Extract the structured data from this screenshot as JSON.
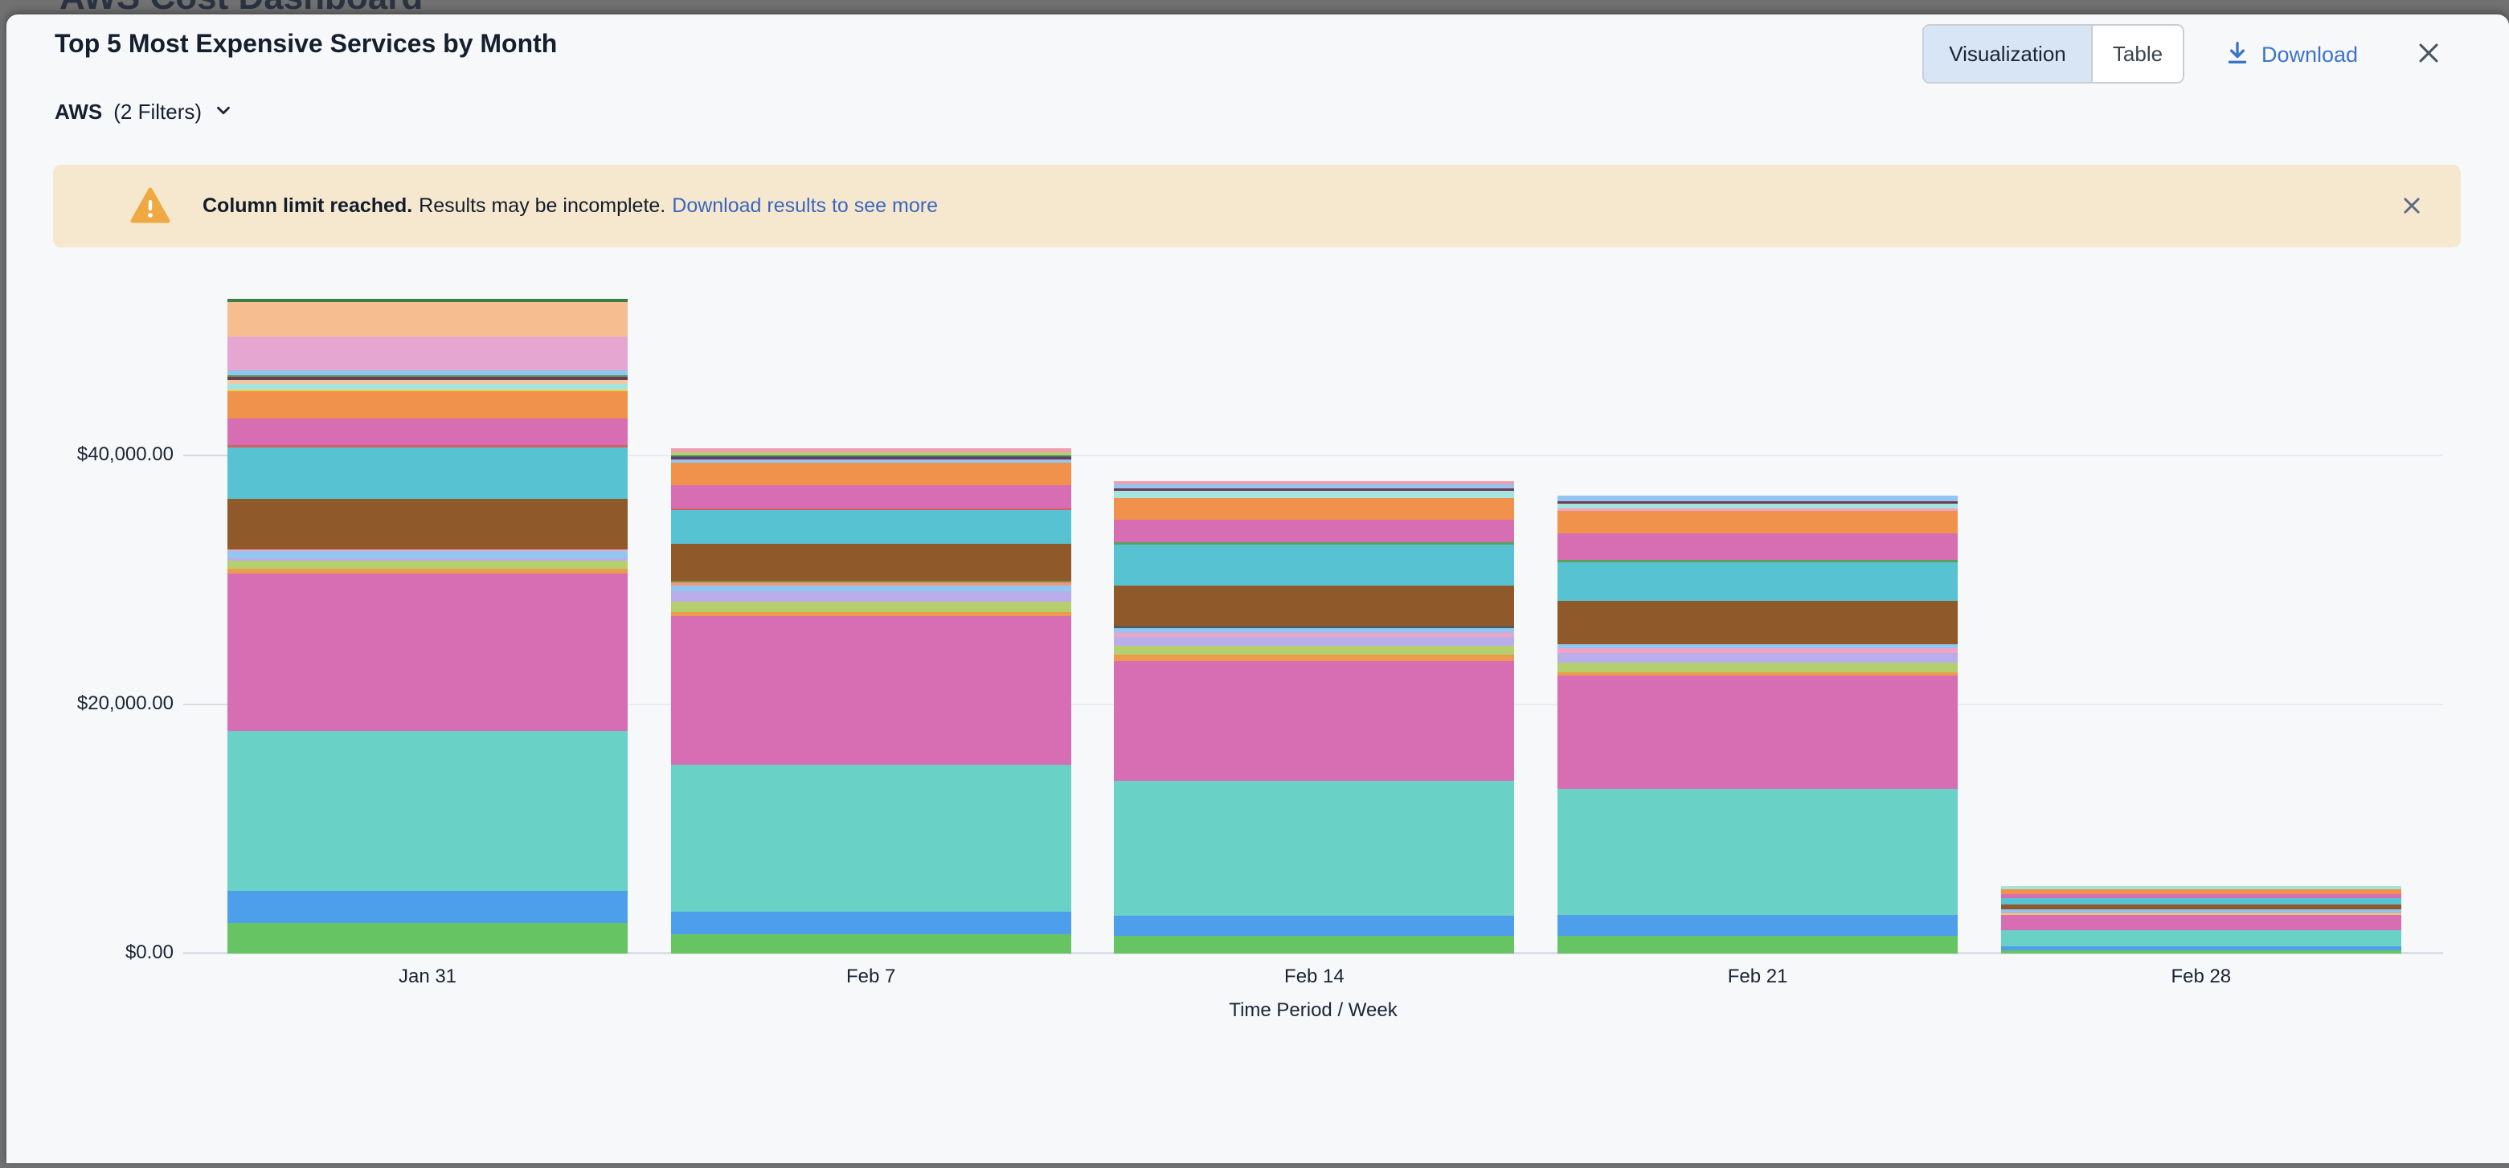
{
  "backdrop": {
    "title": "AWS Cost Dashboard"
  },
  "panel": {
    "title": "Top 5 Most Expensive Services by Month",
    "filter": {
      "name": "AWS",
      "count_label": "(2 Filters)"
    },
    "controls": {
      "view_options": [
        {
          "label": "Visualization",
          "selected": true
        },
        {
          "label": "Table",
          "selected": false
        }
      ],
      "download_label": "Download"
    }
  },
  "banner": {
    "bold_text": "Column limit reached.",
    "text": "Results may be incomplete.",
    "link_text": "Download results to see more",
    "background_color": "#f6e8cf",
    "warning_color": "#f0a942"
  },
  "chart_data": {
    "type": "bar",
    "stacked": true,
    "title": "Top 5 Most Expensive Services by Month",
    "xlabel": "Time Period / Week",
    "ylabel": "",
    "ylim": [
      0,
      55000
    ],
    "grid": true,
    "legend": "none",
    "y_ticks": [
      {
        "value": 0,
        "label": "$0.00"
      },
      {
        "value": 20000,
        "label": "$20,000.00"
      },
      {
        "value": 40000,
        "label": "$40,000.00"
      }
    ],
    "categories": [
      "Jan 31",
      "Feb 7",
      "Feb 14",
      "Feb 21",
      "Feb 28"
    ],
    "totals_usd_approx": [
      52590,
      40580,
      37935,
      36785,
      5450
    ],
    "note": "segments listed bottom-to-top, values approximate USD",
    "bars": [
      {
        "label": "Jan 31",
        "segments": [
          {
            "color": "#67c462",
            "value": 2450
          },
          {
            "color": "#4d9fec",
            "value": 2580
          },
          {
            "color": "#69d1c5",
            "value": 12840
          },
          {
            "color": "#d76db3",
            "value": 12645
          },
          {
            "color": "#eb9b4d",
            "value": 390
          },
          {
            "color": "#b6cf6e",
            "value": 645
          },
          {
            "color": "#b9aeea",
            "value": 195
          },
          {
            "color": "#92c5f1",
            "value": 580
          },
          {
            "color": "#f2a3c3",
            "value": 130
          },
          {
            "color": "#90592a",
            "value": 4065
          },
          {
            "color": "#57c2d2",
            "value": 4130
          },
          {
            "color": "#d95e5e",
            "value": 175
          },
          {
            "color": "#d76db3",
            "value": 2130
          },
          {
            "color": "#f0924b",
            "value": 2215
          },
          {
            "color": "#ecd05c",
            "value": 150
          },
          {
            "color": "#a5e4dd",
            "value": 430
          },
          {
            "color": "#f0c7a5",
            "value": 300
          },
          {
            "color": "#713a56",
            "value": 260
          },
          {
            "color": "#57a35d",
            "value": 150
          },
          {
            "color": "#92c5f1",
            "value": 405
          },
          {
            "color": "#e5a6d2",
            "value": 2710
          },
          {
            "color": "#f5bd90",
            "value": 2755
          },
          {
            "color": "#3c7d45",
            "value": 260
          }
        ]
      },
      {
        "label": "Feb 7",
        "segments": [
          {
            "color": "#67c462",
            "value": 1550
          },
          {
            "color": "#4d9fec",
            "value": 1805
          },
          {
            "color": "#69d1c5",
            "value": 11805
          },
          {
            "color": "#d76db3",
            "value": 11935
          },
          {
            "color": "#eb9b4d",
            "value": 320
          },
          {
            "color": "#b6cf6e",
            "value": 840
          },
          {
            "color": "#b9aeea",
            "value": 840
          },
          {
            "color": "#92c5f1",
            "value": 450
          },
          {
            "color": "#ef9a80",
            "value": 260
          },
          {
            "color": "#7d8b3f",
            "value": 130
          },
          {
            "color": "#90592a",
            "value": 2965
          },
          {
            "color": "#57c2d2",
            "value": 2710
          },
          {
            "color": "#d95e5e",
            "value": 130
          },
          {
            "color": "#d76db3",
            "value": 1870
          },
          {
            "color": "#f0924b",
            "value": 1805
          },
          {
            "color": "#92c5f1",
            "value": 260
          },
          {
            "color": "#713a56",
            "value": 195
          },
          {
            "color": "#2f7d72",
            "value": 130
          },
          {
            "color": "#b6cf6e",
            "value": 260
          },
          {
            "color": "#ee9fae",
            "value": 320
          }
        ]
      },
      {
        "label": "Feb 14",
        "segments": [
          {
            "color": "#67c462",
            "value": 1420
          },
          {
            "color": "#4d9fec",
            "value": 1615
          },
          {
            "color": "#69d1c5",
            "value": 10840
          },
          {
            "color": "#d76db3",
            "value": 9615
          },
          {
            "color": "#eb9b4d",
            "value": 515
          },
          {
            "color": "#b6cf6e",
            "value": 710
          },
          {
            "color": "#b9aeea",
            "value": 710
          },
          {
            "color": "#f2a3c3",
            "value": 320
          },
          {
            "color": "#92c5f1",
            "value": 385
          },
          {
            "color": "#505c55",
            "value": 195
          },
          {
            "color": "#90592a",
            "value": 3225
          },
          {
            "color": "#57c2d2",
            "value": 3290
          },
          {
            "color": "#57a35d",
            "value": 195
          },
          {
            "color": "#d76db3",
            "value": 1805
          },
          {
            "color": "#f0924b",
            "value": 1740
          },
          {
            "color": "#a5e4dd",
            "value": 580
          },
          {
            "color": "#713a56",
            "value": 195
          },
          {
            "color": "#92c5f1",
            "value": 320
          },
          {
            "color": "#ee9fae",
            "value": 260
          }
        ]
      },
      {
        "label": "Feb 21",
        "segments": [
          {
            "color": "#67c462",
            "value": 1420
          },
          {
            "color": "#4d9fec",
            "value": 1680
          },
          {
            "color": "#69d1c5",
            "value": 10130
          },
          {
            "color": "#d76db3",
            "value": 9100
          },
          {
            "color": "#eb9b4d",
            "value": 260
          },
          {
            "color": "#b6cf6e",
            "value": 775
          },
          {
            "color": "#b9aeea",
            "value": 775
          },
          {
            "color": "#f2a3c3",
            "value": 385
          },
          {
            "color": "#92c5f1",
            "value": 320
          },
          {
            "color": "#90592a",
            "value": 3485
          },
          {
            "color": "#57c2d2",
            "value": 3100
          },
          {
            "color": "#57a35d",
            "value": 195
          },
          {
            "color": "#d76db3",
            "value": 2130
          },
          {
            "color": "#f0924b",
            "value": 1805
          },
          {
            "color": "#f2a3c3",
            "value": 195
          },
          {
            "color": "#a5e4dd",
            "value": 385
          },
          {
            "color": "#713a56",
            "value": 195
          },
          {
            "color": "#92c5f1",
            "value": 450
          }
        ]
      },
      {
        "label": "Feb 28",
        "segments": [
          {
            "color": "#67c462",
            "value": 260
          },
          {
            "color": "#4d9fec",
            "value": 320
          },
          {
            "color": "#69d1c5",
            "value": 1290
          },
          {
            "color": "#d76db3",
            "value": 1225
          },
          {
            "color": "#ecd05c",
            "value": 130
          },
          {
            "color": "#b9aeea",
            "value": 130
          },
          {
            "color": "#92c5f1",
            "value": 195
          },
          {
            "color": "#90592a",
            "value": 420
          },
          {
            "color": "#57c2d2",
            "value": 515
          },
          {
            "color": "#d76db3",
            "value": 320
          },
          {
            "color": "#f0924b",
            "value": 355
          },
          {
            "color": "#a5e4dd",
            "value": 290
          }
        ]
      }
    ]
  }
}
